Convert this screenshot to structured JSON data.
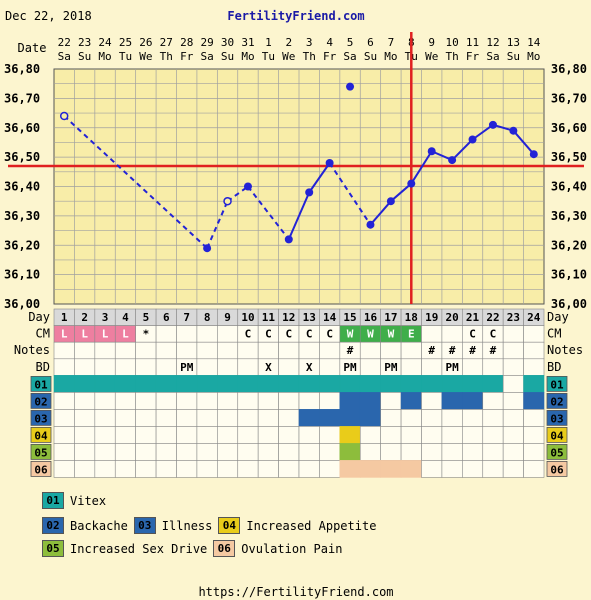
{
  "header": {
    "date": "Dec 22, 2018",
    "site": "FertilityFriend.com",
    "footer_url": "https://FertilityFriend.com"
  },
  "labels": {
    "date": "Date",
    "day": "Day",
    "cm": "CM",
    "notes": "Notes",
    "bd": "BD"
  },
  "chart_data": {
    "type": "line",
    "dates": [
      "22",
      "23",
      "24",
      "25",
      "26",
      "27",
      "28",
      "29",
      "30",
      "31",
      "1",
      "2",
      "3",
      "4",
      "5",
      "6",
      "7",
      "8",
      "9",
      "10",
      "11",
      "12",
      "13",
      "14"
    ],
    "weekdays": [
      "Sa",
      "Su",
      "Mo",
      "Tu",
      "We",
      "Th",
      "Fr",
      "Sa",
      "Su",
      "Mo",
      "Tu",
      "We",
      "Th",
      "Fr",
      "Sa",
      "Su",
      "Mo",
      "Tu",
      "We",
      "Th",
      "Fr",
      "Sa",
      "Su",
      "Mo"
    ],
    "days": [
      1,
      2,
      3,
      4,
      5,
      6,
      7,
      8,
      9,
      10,
      11,
      12,
      13,
      14,
      15,
      16,
      17,
      18,
      19,
      20,
      21,
      22,
      23,
      24
    ],
    "y_ticks": [
      "36,80",
      "36,70",
      "36,60",
      "36,50",
      "36,40",
      "36,30",
      "36,20",
      "36,10",
      "36,00"
    ],
    "ylim": [
      36.0,
      36.8
    ],
    "temps": [
      36.64,
      null,
      null,
      null,
      null,
      null,
      null,
      36.19,
      36.35,
      36.4,
      null,
      36.22,
      36.38,
      36.48,
      36.74,
      36.27,
      36.35,
      36.41,
      36.52,
      36.49,
      36.56,
      36.61,
      36.59,
      36.51
    ],
    "temp_status": [
      "open",
      "",
      "",
      "",
      "",
      "",
      "",
      "normal",
      "open",
      "normal",
      "",
      "normal",
      "normal",
      "normal",
      "discarded",
      "normal",
      "normal",
      "normal",
      "normal",
      "normal",
      "normal",
      "normal",
      "normal",
      "normal"
    ],
    "coverline": 36.47,
    "ovulation_day": 18,
    "cm": [
      "L",
      "L",
      "L",
      "L",
      "*",
      "",
      "",
      "",
      "",
      "C",
      "C",
      "C",
      "C",
      "C",
      "W",
      "W",
      "W",
      "E",
      "",
      "",
      "C",
      "C",
      "",
      ""
    ],
    "cm_colors": {
      "L": "#ee7fa0",
      "W": "#3fae4a",
      "E": "#3fae4a"
    },
    "notes": [
      "",
      "",
      "",
      "",
      "",
      "",
      "",
      "",
      "",
      "",
      "",
      "",
      "",
      "",
      "#",
      "",
      "",
      "",
      "#",
      "#",
      "#",
      "#",
      "",
      ""
    ],
    "bd": [
      "",
      "",
      "",
      "",
      "",
      "",
      "PM",
      "",
      "",
      "",
      "X",
      "",
      "X",
      "",
      "PM",
      "",
      "PM",
      "",
      "",
      "PM",
      "",
      "",
      "",
      ""
    ],
    "symptoms": [
      {
        "code": "01",
        "color": "#1aa8a3",
        "days": [
          1,
          2,
          3,
          4,
          5,
          6,
          7,
          8,
          9,
          10,
          11,
          12,
          13,
          14,
          15,
          16,
          17,
          18,
          19,
          20,
          21,
          22,
          24
        ]
      },
      {
        "code": "02",
        "color": "#2a66ad",
        "days": [
          15,
          16,
          18,
          20,
          21,
          24
        ]
      },
      {
        "code": "03",
        "color": "#2a66ad",
        "days": [
          13,
          14,
          15,
          16
        ]
      },
      {
        "code": "04",
        "color": "#e9cc1a",
        "days": [
          15
        ]
      },
      {
        "code": "05",
        "color": "#8dbd3c",
        "days": [
          15
        ]
      },
      {
        "code": "06",
        "color": "#f5c9a2",
        "days": [
          15,
          16,
          17,
          18
        ]
      }
    ],
    "legend": [
      {
        "code": "01",
        "label": "Vitex",
        "color": "#1aa8a3"
      },
      {
        "code": "02",
        "label": "Backache",
        "color": "#2a66ad"
      },
      {
        "code": "03",
        "label": "Illness",
        "color": "#2a66ad"
      },
      {
        "code": "04",
        "label": "Increased Appetite",
        "color": "#e9cc1a"
      },
      {
        "code": "05",
        "label": "Increased Sex Drive",
        "color": "#8dbd3c"
      },
      {
        "code": "06",
        "label": "Ovulation Pain",
        "color": "#f5c9a2"
      }
    ]
  }
}
